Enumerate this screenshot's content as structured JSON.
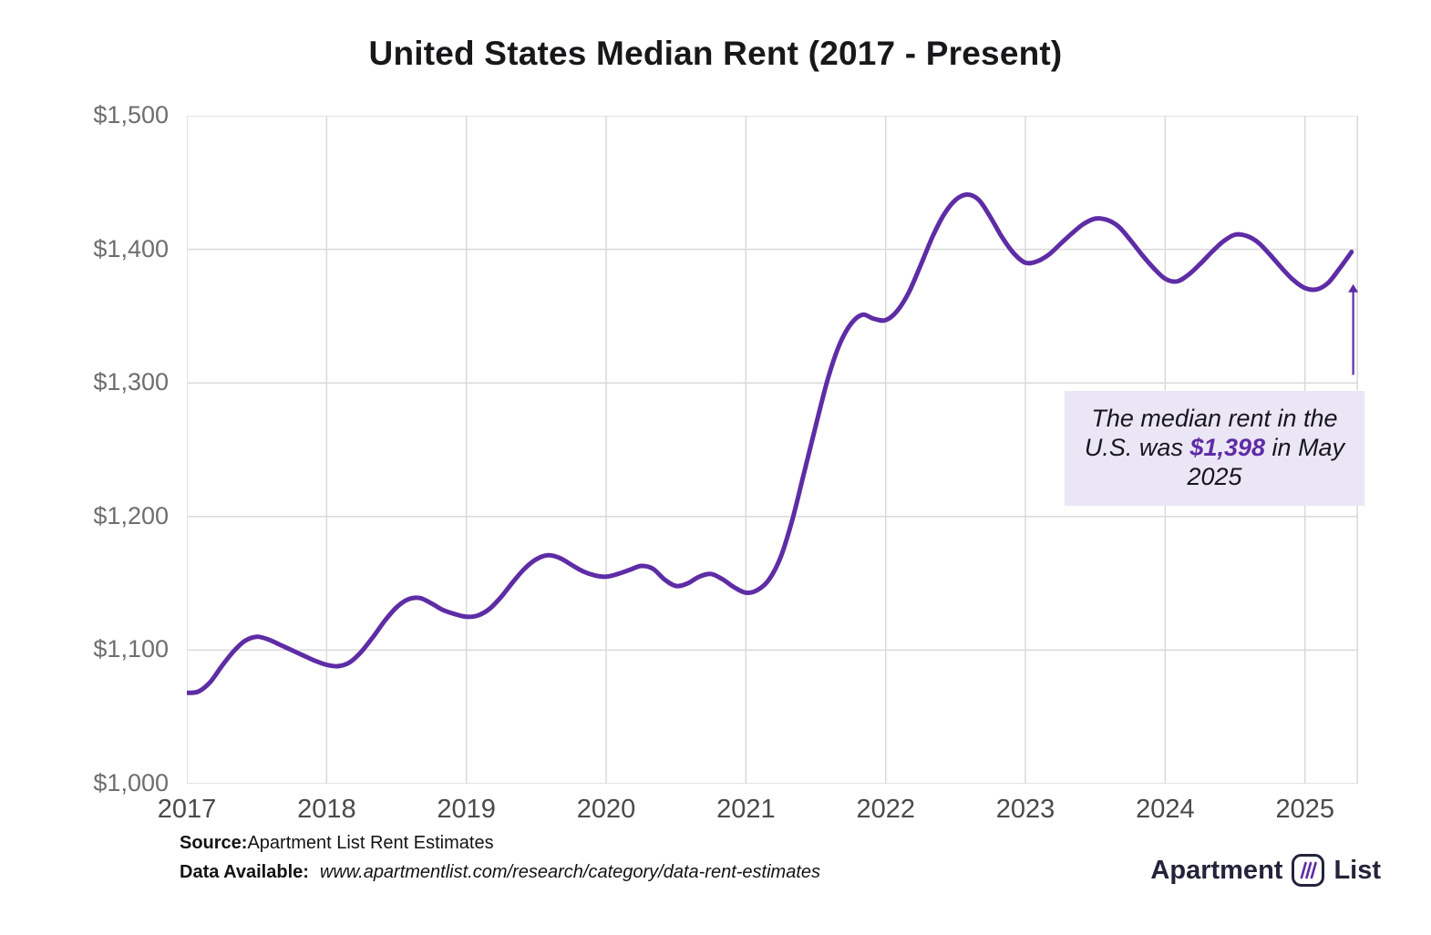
{
  "title": "United States Median Rent (2017 - Present)",
  "annotation": {
    "prefix": "The median rent in the U.S. was ",
    "value": "$1,398",
    "suffix": " in May 2025"
  },
  "footer": {
    "source_label": "Source:",
    "source_text": "Apartment List Rent Estimates",
    "data_label": "Data Available:",
    "data_url": "www.apartmentlist.com/research/category/data-rent-estimates"
  },
  "logo": {
    "word1": "Apartment",
    "word2": "List"
  },
  "chart_data": {
    "type": "line",
    "title": "United States Median Rent (2017 - Present)",
    "xlabel": "",
    "ylabel": "",
    "x_range": [
      2017,
      2025.38
    ],
    "y_range": [
      1000,
      1500
    ],
    "x_ticks": [
      2017,
      2018,
      2019,
      2020,
      2021,
      2022,
      2023,
      2024,
      2025
    ],
    "x_tick_labels": [
      "2017",
      "2018",
      "2019",
      "2020",
      "2021",
      "2022",
      "2023",
      "2024",
      "2025"
    ],
    "y_ticks": [
      1000,
      1100,
      1200,
      1300,
      1400,
      1500
    ],
    "y_tick_labels": [
      "$1,000",
      "$1,100",
      "$1,200",
      "$1,300",
      "$1,400",
      "$1,500"
    ],
    "grid": true,
    "legend": false,
    "line_color": "#5e2ca5",
    "grid_color": "#dadada",
    "series": [
      {
        "name": "United States Median Rent",
        "start": "2017-01",
        "frequency": "monthly",
        "values": [
          1068,
          1069,
          1076,
          1088,
          1099,
          1107,
          1110,
          1108,
          1104,
          1100,
          1096,
          1092,
          1089,
          1088,
          1091,
          1099,
          1110,
          1122,
          1132,
          1138,
          1139,
          1135,
          1130,
          1127,
          1125,
          1126,
          1131,
          1140,
          1151,
          1161,
          1168,
          1171,
          1169,
          1164,
          1159,
          1156,
          1155,
          1157,
          1160,
          1163,
          1161,
          1153,
          1148,
          1150,
          1155,
          1157,
          1153,
          1147,
          1143,
          1145,
          1153,
          1170,
          1198,
          1233,
          1268,
          1302,
          1328,
          1344,
          1351,
          1348,
          1347,
          1354,
          1368,
          1388,
          1409,
          1426,
          1437,
          1441,
          1437,
          1424,
          1409,
          1397,
          1390,
          1391,
          1396,
          1404,
          1412,
          1419,
          1423,
          1422,
          1417,
          1407,
          1396,
          1386,
          1378,
          1376,
          1381,
          1389,
          1398,
          1406,
          1411,
          1410,
          1405,
          1396,
          1386,
          1377,
          1371,
          1370,
          1375,
          1386,
          1398
        ]
      }
    ],
    "arrow": {
      "x": 2025.345,
      "y_from": 1306,
      "y_to": 1374
    },
    "last_point": {
      "date": "May 2025",
      "value": 1398
    }
  }
}
